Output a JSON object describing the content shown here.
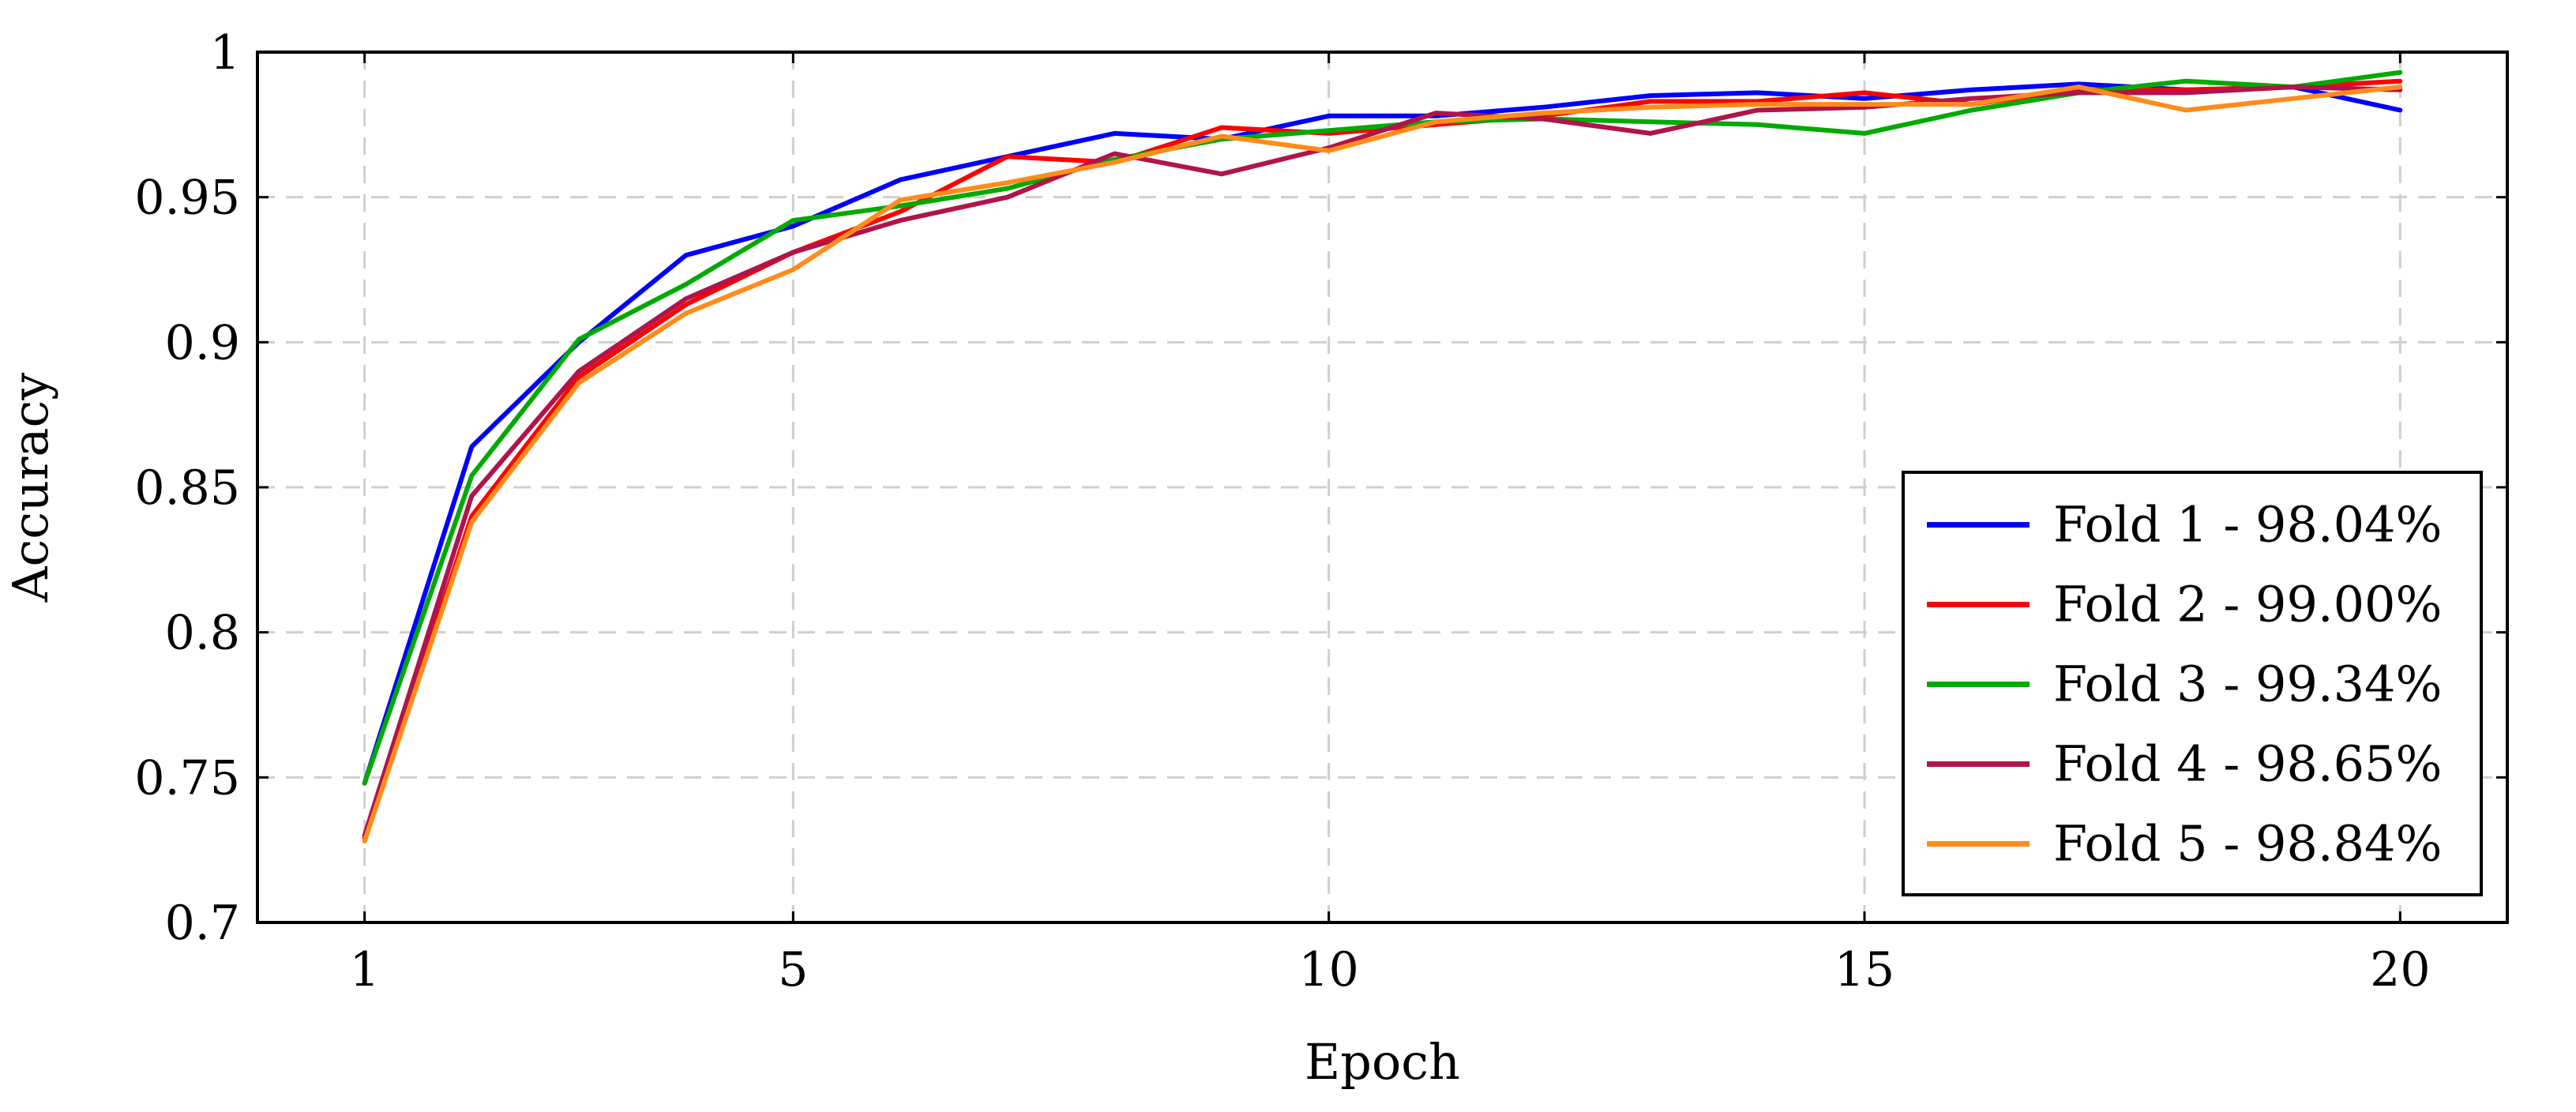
{
  "chart_data": {
    "type": "line",
    "title": "",
    "xlabel": "Epoch",
    "ylabel": "Accuracy",
    "xlim": [
      0,
      21
    ],
    "ylim": [
      0.7,
      1
    ],
    "grid": true,
    "legend_position": "bottom-right",
    "x": [
      1,
      2,
      3,
      4,
      5,
      6,
      7,
      8,
      9,
      10,
      11,
      12,
      13,
      14,
      15,
      16,
      17,
      18,
      19,
      20
    ],
    "x_ticks": [
      {
        "value": 1,
        "label": "1"
      },
      {
        "value": 5,
        "label": "5"
      },
      {
        "value": 10,
        "label": "10"
      },
      {
        "value": 15,
        "label": "15"
      },
      {
        "value": 20,
        "label": "20"
      }
    ],
    "y_ticks": [
      {
        "value": 0.7,
        "label": "0.7"
      },
      {
        "value": 0.75,
        "label": "0.75"
      },
      {
        "value": 0.8,
        "label": "0.8"
      },
      {
        "value": 0.85,
        "label": "0.85"
      },
      {
        "value": 0.9,
        "label": "0.9"
      },
      {
        "value": 0.95,
        "label": "0.95"
      },
      {
        "value": 1.0,
        "label": "1"
      }
    ],
    "series": [
      {
        "name": "Fold 1 - 98.04%",
        "color": "#0000ff",
        "values": [
          0.748,
          0.864,
          0.9,
          0.93,
          0.94,
          0.956,
          0.964,
          0.972,
          0.97,
          0.978,
          0.978,
          0.981,
          0.985,
          0.986,
          0.984,
          0.987,
          0.989,
          0.987,
          0.988,
          0.98
        ]
      },
      {
        "name": "Fold 2 - 99.00%",
        "color": "#ff0000",
        "values": [
          0.729,
          0.84,
          0.888,
          0.913,
          0.931,
          0.945,
          0.964,
          0.962,
          0.974,
          0.972,
          0.975,
          0.978,
          0.983,
          0.983,
          0.986,
          0.982,
          0.987,
          0.987,
          0.988,
          0.99
        ]
      },
      {
        "name": "Fold 3 - 99.34%",
        "color": "#00aa00",
        "values": [
          0.748,
          0.854,
          0.901,
          0.92,
          0.942,
          0.947,
          0.953,
          0.963,
          0.97,
          0.973,
          0.976,
          0.977,
          0.976,
          0.975,
          0.972,
          0.98,
          0.986,
          0.99,
          0.988,
          0.993
        ]
      },
      {
        "name": "Fold 4 - 98.65%",
        "color": "#b0144a",
        "values": [
          0.73,
          0.847,
          0.89,
          0.915,
          0.931,
          0.942,
          0.95,
          0.965,
          0.958,
          0.967,
          0.979,
          0.977,
          0.972,
          0.98,
          0.981,
          0.984,
          0.986,
          0.986,
          0.988,
          0.987
        ]
      },
      {
        "name": "Fold 5 - 98.84%",
        "color": "#ff8c1a",
        "values": [
          0.728,
          0.838,
          0.886,
          0.91,
          0.925,
          0.949,
          0.955,
          0.962,
          0.971,
          0.966,
          0.976,
          0.979,
          0.981,
          0.982,
          0.982,
          0.982,
          0.988,
          0.98,
          0.984,
          0.988
        ]
      }
    ]
  }
}
